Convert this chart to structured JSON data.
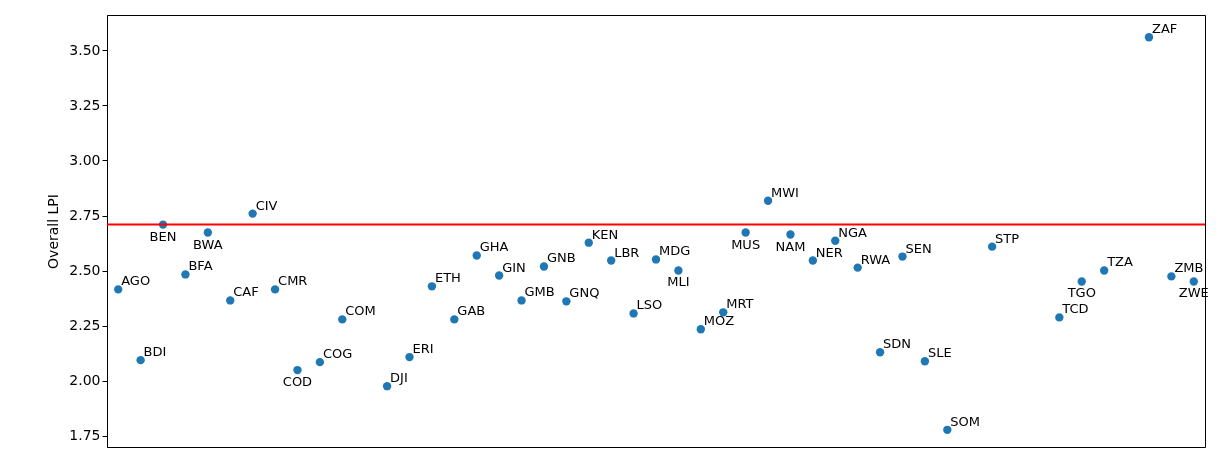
{
  "chart_data": {
    "type": "scatter",
    "ylabel": "Overall LPI",
    "categories": [
      null,
      null,
      null,
      null,
      null,
      null,
      null,
      null,
      null,
      null,
      null,
      null,
      null,
      null,
      null,
      null,
      null,
      null,
      null,
      null,
      null,
      null,
      null,
      null,
      null,
      null,
      null,
      null,
      null,
      null,
      null,
      null,
      null,
      null,
      null,
      null,
      null,
      null,
      null,
      null,
      null,
      null,
      null,
      null,
      null,
      null,
      null,
      null,
      null
    ],
    "series": [
      {
        "color": "#1f77b4",
        "values": [
          2.415,
          2.094,
          2.709,
          2.483,
          2.673,
          2.365,
          2.759,
          2.415,
          2.049,
          2.085,
          2.279,
          null,
          1.976,
          2.108,
          2.429,
          2.279,
          2.569,
          2.478,
          2.365,
          2.519,
          2.361,
          2.627,
          2.546,
          2.306,
          2.551,
          2.501,
          2.234,
          2.311,
          2.673,
          2.817,
          2.664,
          2.546,
          2.636,
          2.514,
          2.13,
          2.564,
          2.089,
          1.778,
          null,
          2.609,
          null,
          null,
          2.288,
          2.451,
          2.501,
          null,
          3.559,
          2.474,
          2.451
        ],
        "value_labels": [
          "AGO",
          "BDI",
          "BEN",
          "BFA",
          "BWA",
          "CAF",
          "CIV",
          "CMR",
          "COD",
          "COG",
          "COM",
          null,
          "DJI",
          "ERI",
          "ETH",
          "GAB",
          "GHA",
          "GIN",
          "GMB",
          "GNB",
          "GNQ",
          "KEN",
          "LBR",
          "LSO",
          "MDG",
          "MLI",
          "MOZ",
          "MRT",
          "MUS",
          "MWI",
          "NAM",
          "NER",
          "NGA",
          "RWA",
          "SDN",
          "SEN",
          "SLE",
          "SOM",
          null,
          "STP",
          null,
          null,
          "TCD",
          "TGO",
          "TZA",
          null,
          "ZAF",
          "ZMB",
          "ZWE"
        ]
      }
    ],
    "ylim": [
      1.7,
      3.66
    ],
    "yticks": [
      {
        "value": 1.75,
        "label": "1.75"
      },
      {
        "value": 2.0,
        "label": "2.00"
      },
      {
        "value": 2.25,
        "label": "2.25"
      },
      {
        "value": 2.5,
        "label": "2.50"
      },
      {
        "value": 2.75,
        "label": "2.75"
      },
      {
        "value": 3.0,
        "label": "3.00"
      },
      {
        "value": 3.25,
        "label": "3.25"
      },
      {
        "value": 3.5,
        "label": "3.50"
      }
    ],
    "ref_lines": [
      {
        "axis": "y",
        "value": 2.71,
        "color": "#ff0000"
      }
    ],
    "marker": "circle",
    "grid": false
  }
}
